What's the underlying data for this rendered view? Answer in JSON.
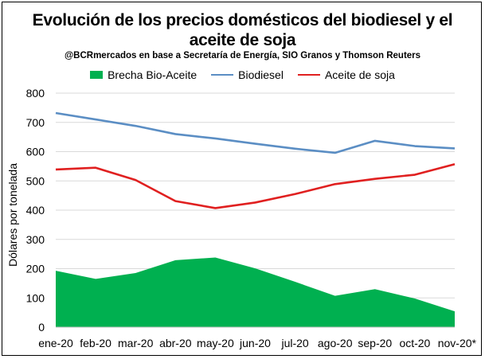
{
  "chart_data": {
    "type": "line",
    "title_line1": "Evolución de los precios domésticos del biodiesel y el",
    "title_line2": "aceite de soja",
    "subtitle": "@BCRmercados en base a Secretaría de Energía, SIO Granos y Thomson Reuters",
    "ylabel": "Dólares por tonelada",
    "xlabel": "",
    "ylim": [
      0,
      800
    ],
    "yticks": [
      0,
      100,
      200,
      300,
      400,
      500,
      600,
      700,
      800
    ],
    "categories": [
      "ene-20",
      "feb-20",
      "mar-20",
      "abr-20",
      "may-20",
      "jun-20",
      "jul-20",
      "ago-20",
      "sep-20",
      "oct-20",
      "nov-20*"
    ],
    "series": [
      {
        "name": "Brecha Bio-Aceite",
        "kind": "area",
        "color": "#00b050",
        "values": [
          193,
          165,
          185,
          229,
          238,
          201,
          155,
          107,
          130,
          98,
          54
        ]
      },
      {
        "name": "Biodiesel",
        "kind": "line",
        "color": "#5b8ec4",
        "values": [
          732,
          710,
          688,
          660,
          645,
          627,
          610,
          596,
          637,
          619,
          611
        ]
      },
      {
        "name": "Aceite de soja",
        "kind": "line",
        "color": "#e02020",
        "values": [
          539,
          545,
          503,
          431,
          407,
          426,
          455,
          489,
          507,
          521,
          557
        ]
      }
    ],
    "grid": true,
    "legend_position": "top"
  }
}
